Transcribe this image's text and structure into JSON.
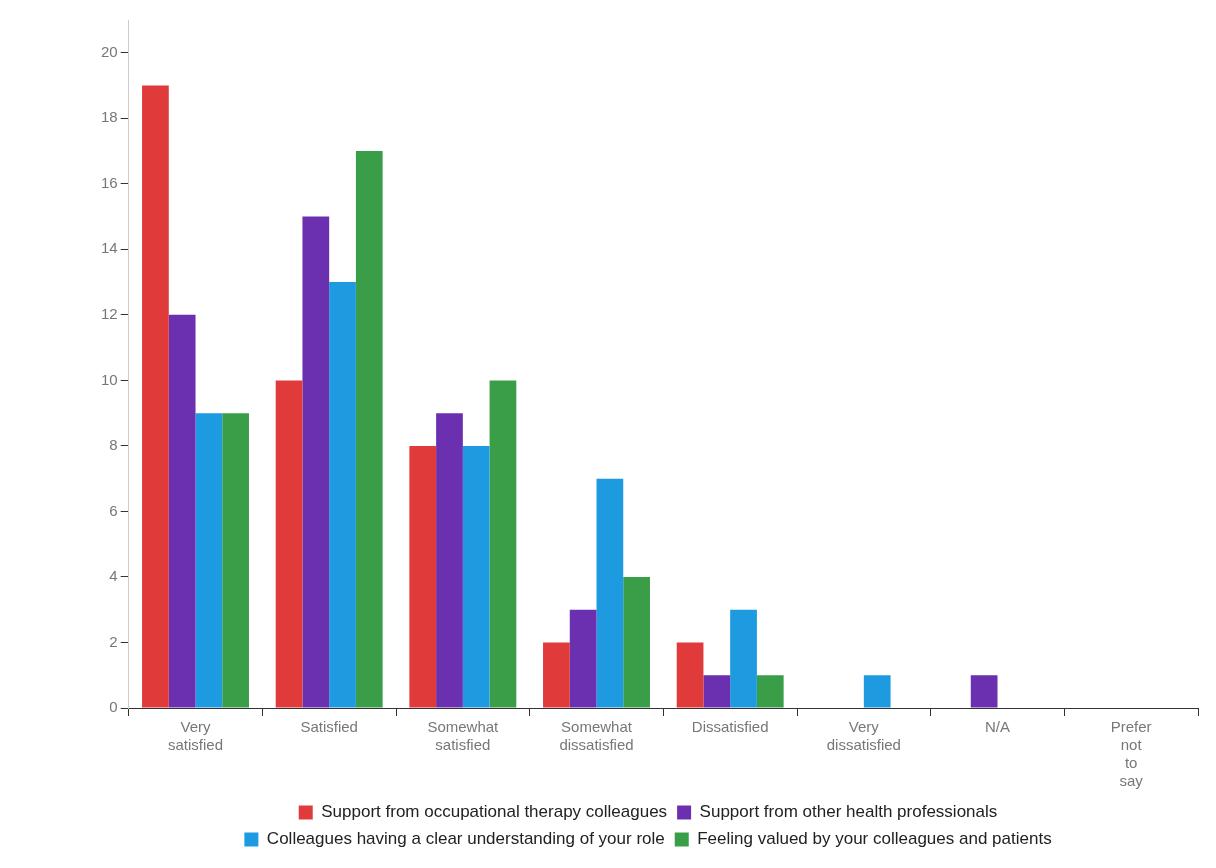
{
  "chart_data": {
    "type": "bar",
    "categories": [
      "Very satisfied",
      "Satisfied",
      "Somewhat satisfied",
      "Somewhat dissatisfied",
      "Dissatisfied",
      "Very dissatisfied",
      "N/A",
      "Prefer not to say"
    ],
    "series": [
      {
        "name": "Support from occupational therapy colleagues",
        "color": "#e03a3a",
        "values": [
          19,
          10,
          8,
          2,
          2,
          0,
          0,
          0
        ]
      },
      {
        "name": "Support from other health professionals",
        "color": "#6a30b0",
        "values": [
          12,
          15,
          9,
          3,
          1,
          0,
          1,
          0
        ]
      },
      {
        "name": "Colleagues having a clear understanding of your role",
        "color": "#1e9be0",
        "values": [
          9,
          13,
          8,
          7,
          3,
          1,
          0,
          0
        ]
      },
      {
        "name": "Feeling valued by your colleagues and patients",
        "color": "#3a9e48",
        "values": [
          9,
          17,
          10,
          4,
          1,
          0,
          0,
          0
        ]
      }
    ],
    "ylim": [
      0,
      21
    ],
    "yticks": [
      0,
      2,
      4,
      6,
      8,
      10,
      12,
      14,
      16,
      18,
      20
    ],
    "grid": false,
    "legend": "bottom"
  }
}
